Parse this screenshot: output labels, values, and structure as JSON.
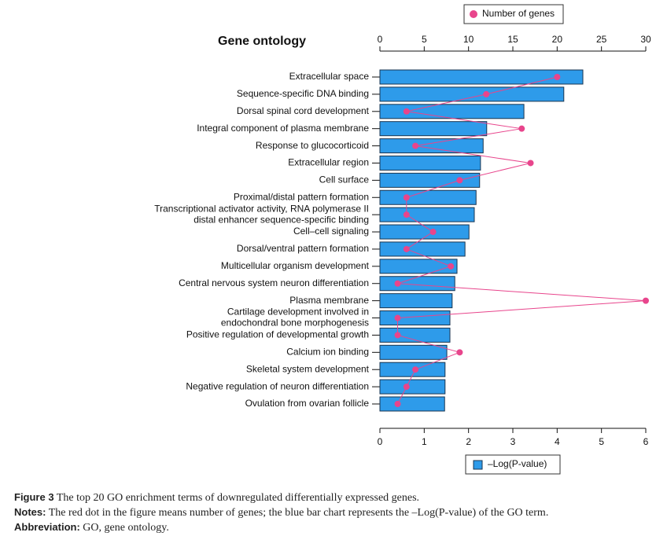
{
  "chart_data": {
    "type": "bar-line",
    "title": "Gene ontology",
    "orientation": "horizontal",
    "categories": [
      "Extracellular space",
      "Sequence-specific DNA binding",
      "Dorsal spinal cord development",
      "Integral component of plasma membrane",
      "Response to glucocorticoid",
      "Extracellular region",
      "Cell surface",
      "Proximal/distal pattern formation",
      [
        "Transcriptional activator activity, RNA polymerase II",
        "distal enhancer sequence-specific binding"
      ],
      "Cell–cell signaling",
      "Dorsal/ventral pattern formation",
      "Multicellular organism development",
      "Central nervous system neuron differentiation",
      "Plasma membrane",
      [
        "Cartilage development involved in",
        "endochondral bone morphogenesis"
      ],
      "Positive regulation of developmental growth",
      "Calcium ion binding",
      "Skeletal system development",
      "Negative regulation of neuron differentiation",
      "Ovulation from ovarian follicle"
    ],
    "series": [
      {
        "name": "–Log(P-value)",
        "color": "#2e9bea",
        "mark": "bar",
        "axis": "x",
        "values": [
          4.58,
          4.15,
          3.25,
          2.41,
          2.33,
          2.27,
          2.25,
          2.17,
          2.13,
          2.01,
          1.92,
          1.74,
          1.69,
          1.63,
          1.58,
          1.58,
          1.51,
          1.47,
          1.47,
          1.46
        ]
      },
      {
        "name": "Number of genes",
        "color": "#e8458c",
        "mark": "line-dot",
        "axis": "x2",
        "values": [
          20,
          12,
          3,
          16,
          4,
          17,
          9,
          3,
          3,
          6,
          3,
          8,
          2,
          30,
          2,
          2,
          9,
          4,
          3,
          2
        ]
      }
    ],
    "xlim": [
      0,
      6
    ],
    "xticks": [
      0,
      1,
      2,
      3,
      4,
      5,
      6
    ],
    "x2lim": [
      0,
      30
    ],
    "x2ticks": [
      0,
      5,
      10,
      15,
      20,
      25,
      30
    ]
  },
  "caption": {
    "figure_label": "Figure 3",
    "figure_text": "The top 20 GO enrichment terms of downregulated differentially expressed genes.",
    "notes_label": "Notes:",
    "notes_text": "The red dot in the figure means number of genes; the blue bar chart represents the –Log(P-value) of the GO term.",
    "abbreviation_label": "Abbreviation:",
    "abbreviation_text": "GO, gene ontology."
  }
}
